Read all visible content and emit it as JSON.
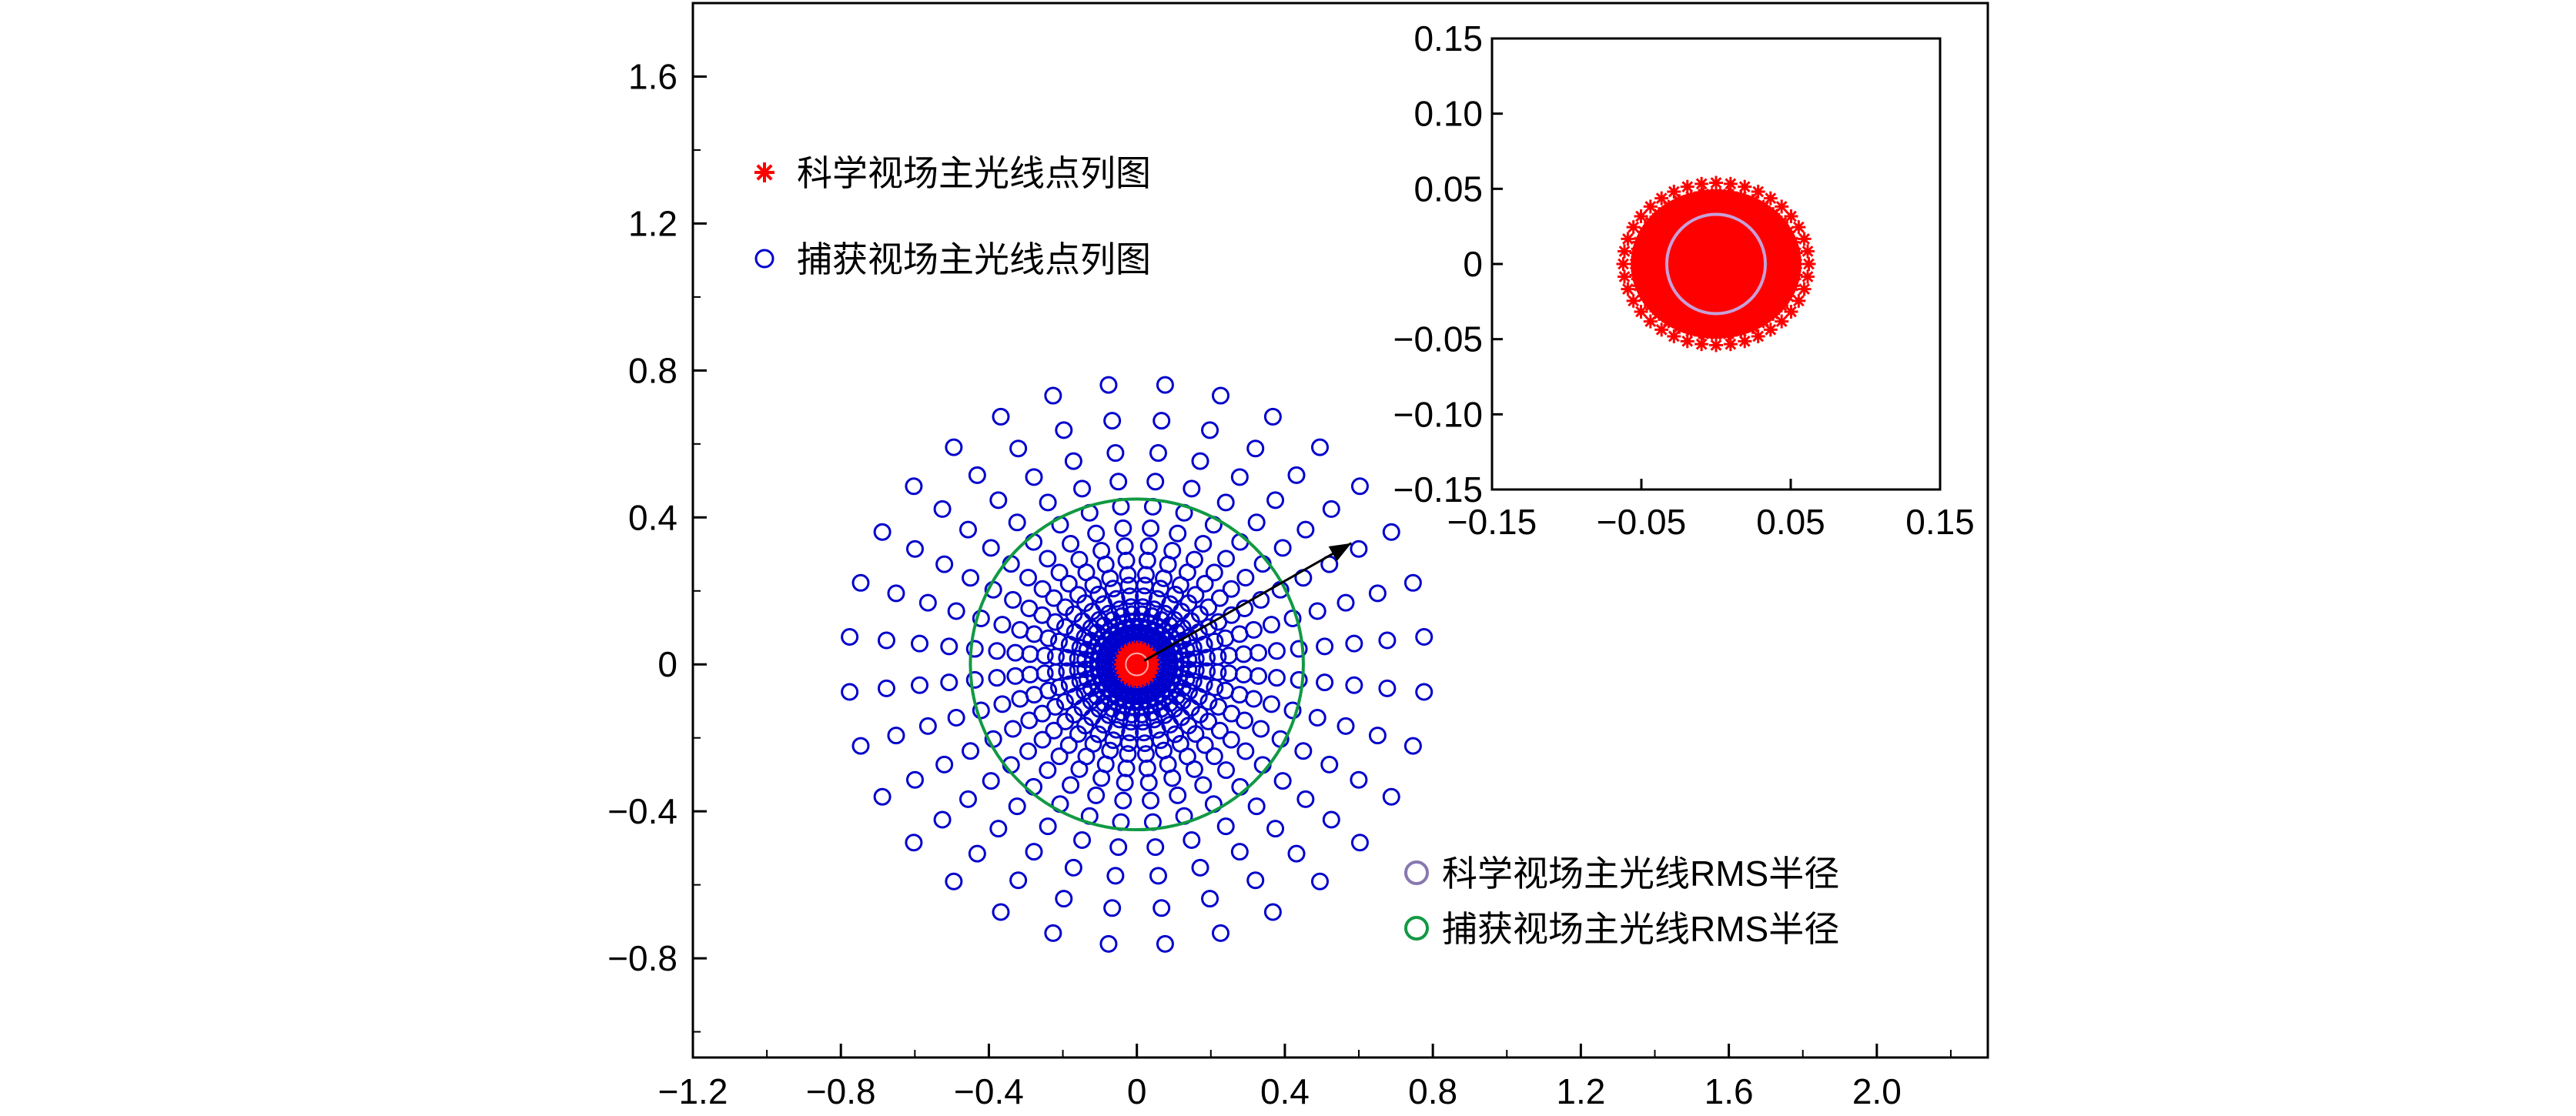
{
  "chart_data": [
    {
      "type": "scatter",
      "title": "",
      "xlabel": "",
      "ylabel": "",
      "xlim": [
        -1.2,
        2.3
      ],
      "ylim": [
        -1.07,
        1.8
      ],
      "xticks": [
        "−1.2",
        "−0.8",
        "−0.4",
        "0",
        "0.4",
        "0.8",
        "1.2",
        "1.6",
        "2.0"
      ],
      "xtick_values": [
        -1.2,
        -0.8,
        -0.4,
        0,
        0.4,
        0.8,
        1.2,
        1.6,
        2.0
      ],
      "yticks": [
        "−0.8",
        "−0.4",
        "0",
        "0.4",
        "0.8",
        "1.2",
        "1.6"
      ],
      "ytick_values": [
        -0.8,
        -0.4,
        0,
        0.4,
        0.8,
        1.2,
        1.6
      ],
      "grid": false,
      "legend_position": "top-left",
      "legend": [
        {
          "label": "科学视场主光线点列图",
          "marker": "asterisk",
          "color": "#ff0000"
        },
        {
          "label": "捕获视场主光线点列图",
          "marker": "circle",
          "color": "#0000cc"
        }
      ],
      "legend2_position": "bottom-right",
      "legend2": [
        {
          "label": "科学视场主光线RMS半径",
          "marker": "circle",
          "color": "#8878b0"
        },
        {
          "label": "捕获视场主光线RMS半径",
          "marker": "circle",
          "color": "#119944"
        }
      ],
      "series": [
        {
          "name": "捕获视场主光线点列图",
          "marker": "circle",
          "color": "#0000cc",
          "pattern": "radial spokes",
          "spokes": 32,
          "ring_radii": [
            0.06,
            0.075,
            0.09,
            0.105,
            0.12,
            0.14,
            0.16,
            0.19,
            0.22,
            0.25,
            0.29,
            0.33,
            0.38,
            0.44,
            0.51,
            0.59,
            0.68,
            0.78
          ],
          "ring_x_scale": 1.0,
          "ring_y_scale": 0.98
        },
        {
          "name": "科学视场主光线点列图",
          "marker": "asterisk",
          "color": "#ff0000",
          "center": [
            0,
            0
          ],
          "radius": 0.05
        }
      ],
      "rms_circles": [
        {
          "name": "科学视场主光线RMS半径",
          "center": [
            0,
            0
          ],
          "radius": 0.03,
          "color": "#ffaaaa"
        },
        {
          "name": "捕获视场主光线RMS半径",
          "center": [
            0,
            0
          ],
          "radius": 0.45,
          "color": "#119944"
        }
      ],
      "arrow": {
        "from": [
          0.02,
          0.01
        ],
        "to": [
          0.58,
          0.33
        ]
      }
    },
    {
      "type": "scatter",
      "title": "",
      "xlim": [
        -0.15,
        0.15
      ],
      "ylim": [
        -0.15,
        0.15
      ],
      "xticks": [
        "−0.15",
        "−0.05",
        "0.05",
        "0.15"
      ],
      "xtick_values": [
        -0.15,
        -0.05,
        0.05,
        0.15
      ],
      "yticks": [
        "−0.15",
        "−0.10",
        "−0.05",
        "0",
        "0.05",
        "0.10",
        "0.15"
      ],
      "ytick_values": [
        -0.15,
        -0.1,
        -0.05,
        0,
        0.05,
        0.1,
        0.15
      ],
      "grid": false,
      "series": [
        {
          "name": "科学视场主光线点列图",
          "marker": "asterisk",
          "color": "#ff0000",
          "pattern": "radial spokes",
          "spokes": 40,
          "ring_radii": [
            0.0,
            0.008,
            0.016,
            0.024,
            0.032,
            0.04,
            0.047,
            0.054
          ],
          "ring_x_scale": 1.15,
          "ring_y_scale": 1.0
        }
      ],
      "rms_circles": [
        {
          "name": "科学视场主光线RMS半径",
          "center": [
            0,
            0
          ],
          "radius": 0.033,
          "color": "#c8a0d8"
        }
      ]
    }
  ]
}
